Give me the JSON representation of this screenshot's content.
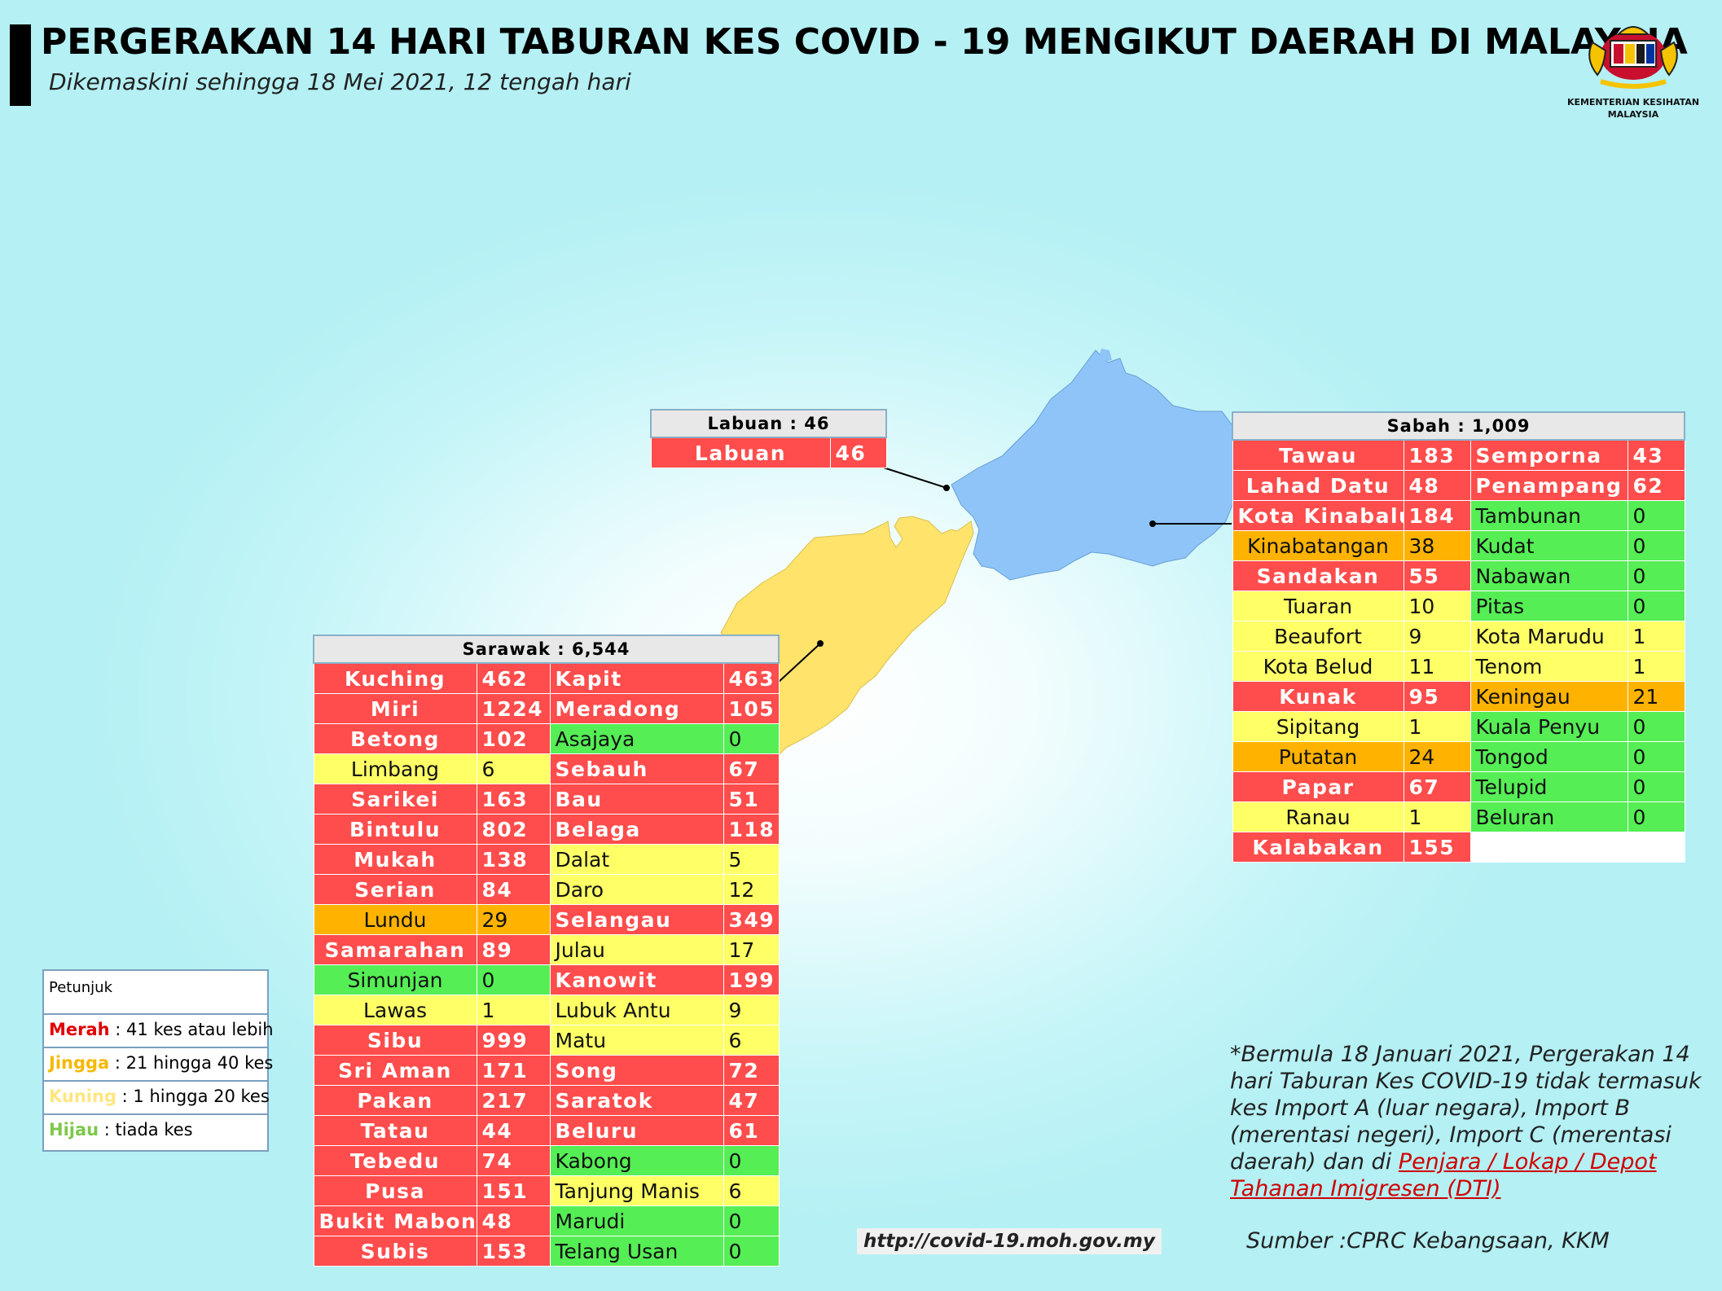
{
  "header": {
    "title": "PERGERAKAN 14 HARI TABURAN KES COVID - 19 MENGIKUT DAERAH DI MALAYSIA",
    "subtitle": "Dikemaskini sehingga 18 Mei 2021, 12 tengah hari"
  },
  "logo": {
    "line1": "KEMENTERIAN KESIHATAN",
    "line2": "MALAYSIA"
  },
  "colors": {
    "merah": "#ff4c4c",
    "jingga": "#ffb300",
    "kuning": "#ffff66",
    "hijau": "#55ee55",
    "sabah_map": "#8ec4f8",
    "sarawak_map": "#ffe36b"
  },
  "labuan": {
    "header": "Labuan : 46",
    "rows": [
      {
        "n": "Labuan",
        "v": "46",
        "c": "r"
      }
    ]
  },
  "sabah": {
    "header": "Sabah : 1,009",
    "rows": [
      {
        "n1": "Tawau",
        "v1": "183",
        "c1": "r",
        "n2": "Semporna",
        "v2": "43",
        "c2": "r"
      },
      {
        "n1": "Lahad Datu",
        "v1": "48",
        "c1": "r",
        "n2": "Penampang",
        "v2": "62",
        "c2": "r"
      },
      {
        "n1": "Kota Kinabalu",
        "v1": "184",
        "c1": "r",
        "n2": "Tambunan",
        "v2": "0",
        "c2": "g"
      },
      {
        "n1": "Kinabatangan",
        "v1": "38",
        "c1": "o",
        "n2": "Kudat",
        "v2": "0",
        "c2": "g"
      },
      {
        "n1": "Sandakan",
        "v1": "55",
        "c1": "r",
        "n2": "Nabawan",
        "v2": "0",
        "c2": "g"
      },
      {
        "n1": "Tuaran",
        "v1": "10",
        "c1": "y",
        "n2": "Pitas",
        "v2": "0",
        "c2": "g"
      },
      {
        "n1": "Beaufort",
        "v1": "9",
        "c1": "y",
        "n2": "Kota Marudu",
        "v2": "1",
        "c2": "y"
      },
      {
        "n1": "Kota Belud",
        "v1": "11",
        "c1": "y",
        "n2": "Tenom",
        "v2": "1",
        "c2": "y"
      },
      {
        "n1": "Kunak",
        "v1": "95",
        "c1": "r",
        "n2": "Keningau",
        "v2": "21",
        "c2": "o"
      },
      {
        "n1": "Sipitang",
        "v1": "1",
        "c1": "y",
        "n2": "Kuala Penyu",
        "v2": "0",
        "c2": "g"
      },
      {
        "n1": "Putatan",
        "v1": "24",
        "c1": "o",
        "n2": "Tongod",
        "v2": "0",
        "c2": "g"
      },
      {
        "n1": "Papar",
        "v1": "67",
        "c1": "r",
        "n2": "Telupid",
        "v2": "0",
        "c2": "g"
      },
      {
        "n1": "Ranau",
        "v1": "1",
        "c1": "y",
        "n2": "Beluran",
        "v2": "0",
        "c2": "g"
      },
      {
        "n1": "Kalabakan",
        "v1": "155",
        "c1": "r",
        "n2": "",
        "v2": "",
        "c2": "e"
      }
    ]
  },
  "sarawak": {
    "header": "Sarawak : 6,544",
    "rows": [
      {
        "n1": "Kuching",
        "v1": "462",
        "c1": "r",
        "n2": "Kapit",
        "v2": "463",
        "c2": "r"
      },
      {
        "n1": "Miri",
        "v1": "1224",
        "c1": "r",
        "n2": "Meradong",
        "v2": "105",
        "c2": "r"
      },
      {
        "n1": "Betong",
        "v1": "102",
        "c1": "r",
        "n2": "Asajaya",
        "v2": "0",
        "c2": "g"
      },
      {
        "n1": "Limbang",
        "v1": "6",
        "c1": "y",
        "n2": "Sebauh",
        "v2": "67",
        "c2": "r"
      },
      {
        "n1": "Sarikei",
        "v1": "163",
        "c1": "r",
        "n2": "Bau",
        "v2": "51",
        "c2": "r"
      },
      {
        "n1": "Bintulu",
        "v1": "802",
        "c1": "r",
        "n2": "Belaga",
        "v2": "118",
        "c2": "r"
      },
      {
        "n1": "Mukah",
        "v1": "138",
        "c1": "r",
        "n2": "Dalat",
        "v2": "5",
        "c2": "y"
      },
      {
        "n1": "Serian",
        "v1": "84",
        "c1": "r",
        "n2": "Daro",
        "v2": "12",
        "c2": "y"
      },
      {
        "n1": "Lundu",
        "v1": "29",
        "c1": "o",
        "n2": "Selangau",
        "v2": "349",
        "c2": "r"
      },
      {
        "n1": "Samarahan",
        "v1": "89",
        "c1": "r",
        "n2": "Julau",
        "v2": "17",
        "c2": "y"
      },
      {
        "n1": "Simunjan",
        "v1": "0",
        "c1": "g",
        "n2": "Kanowit",
        "v2": "199",
        "c2": "r"
      },
      {
        "n1": "Lawas",
        "v1": "1",
        "c1": "y",
        "n2": "Lubuk Antu",
        "v2": "9",
        "c2": "y"
      },
      {
        "n1": "Sibu",
        "v1": "999",
        "c1": "r",
        "n2": "Matu",
        "v2": "6",
        "c2": "y"
      },
      {
        "n1": "Sri Aman",
        "v1": "171",
        "c1": "r",
        "n2": "Song",
        "v2": "72",
        "c2": "r"
      },
      {
        "n1": "Pakan",
        "v1": "217",
        "c1": "r",
        "n2": "Saratok",
        "v2": "47",
        "c2": "r"
      },
      {
        "n1": "Tatau",
        "v1": "44",
        "c1": "r",
        "n2": "Beluru",
        "v2": "61",
        "c2": "r"
      },
      {
        "n1": "Tebedu",
        "v1": "74",
        "c1": "r",
        "n2": "Kabong",
        "v2": "0",
        "c2": "g"
      },
      {
        "n1": "Pusa",
        "v1": "151",
        "c1": "r",
        "n2": "Tanjung Manis",
        "v2": "6",
        "c2": "y"
      },
      {
        "n1": "Bukit Mabong",
        "v1": "48",
        "c1": "r",
        "n2": "Marudi",
        "v2": "0",
        "c2": "g"
      },
      {
        "n1": "Subis",
        "v1": "153",
        "c1": "r",
        "n2": "Telang Usan",
        "v2": "0",
        "c2": "g"
      }
    ]
  },
  "legend": {
    "title": "Petunjuk",
    "items": [
      {
        "key": "Merah",
        "text": " : 41 kes atau lebih",
        "color": "#e00000"
      },
      {
        "key": "Jingga",
        "text": " : 21 hingga 40 kes",
        "color": "#f5b800"
      },
      {
        "key": "Kuning",
        "text": " : 1 hingga 20 kes",
        "color": "#ffe680"
      },
      {
        "key": "Hijau",
        "text": " : tiada kes",
        "color": "#7cc84a"
      }
    ]
  },
  "note": {
    "text": "*Bermula 18 Januari 2021, Pergerakan 14 hari Taburan Kes COVID-19 tidak termasuk kes Import A (luar negara), Import B (merentasi negeri), Import C (merentasi daerah) dan di ",
    "link": "Penjara / Lokap / Depot Tahanan Imigresen (DTI)"
  },
  "url": "http://covid-19.moh.gov.my",
  "source": "Sumber :CPRC Kebangsaan,  KKM"
}
